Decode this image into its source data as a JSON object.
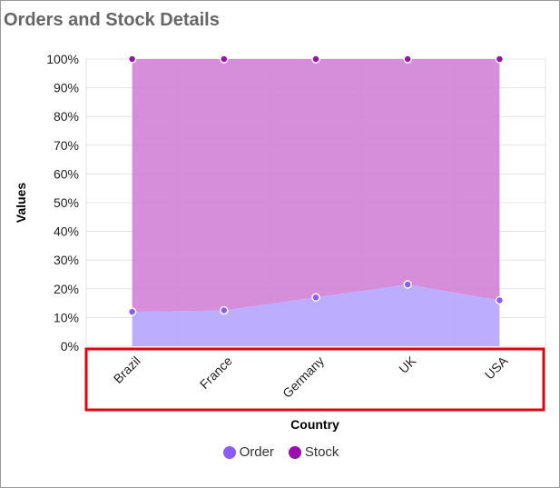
{
  "colors": {
    "order_fill": "#b7a6ff",
    "stock_fill": "#d283d7",
    "order_marker": "#8e5cf2",
    "stock_marker": "#9a10ad",
    "highlight_box": "#e3000f",
    "grid": "#e3e3e3"
  },
  "chart_data": {
    "type": "area",
    "stacking": "percent",
    "title": "Orders and Stock Details",
    "xlabel": "Country",
    "ylabel": "Values",
    "categories": [
      "Brazil",
      "France",
      "Germany",
      "UK",
      "USA"
    ],
    "ylim": [
      0,
      100
    ],
    "yticks": [
      "0%",
      "10%",
      "20%",
      "30%",
      "40%",
      "50%",
      "60%",
      "70%",
      "80%",
      "90%",
      "100%"
    ],
    "series": [
      {
        "name": "Order",
        "values": [
          12,
          12.5,
          17,
          21.5,
          16
        ]
      },
      {
        "name": "Stock",
        "values": [
          88,
          87.5,
          83,
          78.5,
          84
        ]
      }
    ],
    "legend_position": "bottom",
    "grid": true,
    "highlighted_region": "x-axis labels"
  }
}
